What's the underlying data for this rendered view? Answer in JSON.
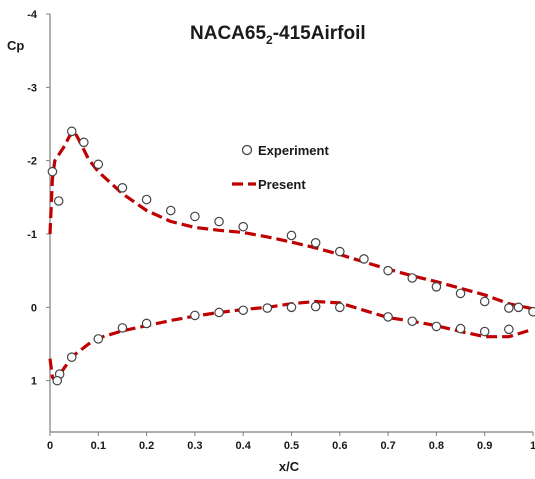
{
  "chart_data": {
    "type": "line",
    "title_main": "NACA65",
    "title_sub": "2",
    "title_rest": "-415Airfoil",
    "xlabel": "x/C",
    "ylabel": "Cp",
    "xlim": [
      0,
      1
    ],
    "ylim": [
      1.7,
      -4
    ],
    "y_inverted": true,
    "grid": false,
    "legend_position": "upper-center",
    "x_tick_labels": [
      "0",
      "0.1",
      "0.2",
      "0.3",
      "0.4",
      "0.5",
      "0.6",
      "0.7",
      "0.8",
      "0.9",
      "1"
    ],
    "x_tick_values": [
      0,
      0.1,
      0.2,
      0.3,
      0.4,
      0.5,
      0.6,
      0.7,
      0.8,
      0.9,
      1.0
    ],
    "y_tick_labels": [
      "-4",
      "-3",
      "-2",
      "-1",
      "0",
      "1"
    ],
    "y_tick_values": [
      -4,
      -3,
      -2,
      -1,
      0,
      1
    ],
    "colors": {
      "present": "#c00000",
      "experiment": "#444444",
      "axis": "#7f7f7f"
    },
    "series": [
      {
        "name": "Experiment",
        "style": "open-circle",
        "x": [
          0.005,
          0.018,
          0.045,
          0.07,
          0.1,
          0.15,
          0.2,
          0.25,
          0.3,
          0.35,
          0.4,
          0.5,
          0.55,
          0.6,
          0.65,
          0.7,
          0.75,
          0.8,
          0.85,
          0.9,
          0.95,
          0.97,
          1.0,
          0.02,
          0.015,
          0.045,
          0.1,
          0.15,
          0.2,
          0.3,
          0.35,
          0.4,
          0.45,
          0.5,
          0.55,
          0.6,
          0.7,
          0.75,
          0.8,
          0.85,
          0.9,
          0.95
        ],
        "y": [
          -1.85,
          -1.45,
          -2.4,
          -2.25,
          -1.95,
          -1.63,
          -1.47,
          -1.32,
          -1.24,
          -1.17,
          -1.1,
          -0.98,
          -0.88,
          -0.76,
          -0.66,
          -0.5,
          -0.4,
          -0.28,
          -0.19,
          -0.08,
          0.01,
          0.0,
          0.06,
          0.91,
          1.0,
          0.68,
          0.43,
          0.28,
          0.22,
          0.11,
          0.07,
          0.04,
          0.01,
          0.0,
          -0.01,
          0.0,
          0.13,
          0.19,
          0.26,
          0.29,
          0.33,
          0.3
        ]
      },
      {
        "name": "Present",
        "style": "dashed-line",
        "upper": {
          "x": [
            0.0,
            0.005,
            0.01,
            0.02,
            0.03,
            0.04,
            0.05,
            0.06,
            0.08,
            0.1,
            0.15,
            0.2,
            0.25,
            0.3,
            0.35,
            0.4,
            0.45,
            0.5,
            0.55,
            0.6,
            0.65,
            0.7,
            0.75,
            0.8,
            0.85,
            0.9,
            0.95,
            1.0
          ],
          "y": [
            -1.0,
            -1.75,
            -2.0,
            -2.1,
            -2.2,
            -2.33,
            -2.4,
            -2.28,
            -2.02,
            -1.85,
            -1.55,
            -1.32,
            -1.17,
            -1.09,
            -1.05,
            -1.02,
            -0.96,
            -0.89,
            -0.81,
            -0.72,
            -0.62,
            -0.52,
            -0.43,
            -0.35,
            -0.26,
            -0.17,
            -0.05,
            0.02
          ]
        },
        "lower": {
          "x": [
            0.0,
            0.005,
            0.01,
            0.02,
            0.03,
            0.05,
            0.08,
            0.1,
            0.15,
            0.2,
            0.25,
            0.3,
            0.35,
            0.4,
            0.45,
            0.5,
            0.55,
            0.6,
            0.65,
            0.7,
            0.75,
            0.8,
            0.85,
            0.9,
            0.95,
            1.0
          ],
          "y": [
            0.7,
            0.95,
            1.0,
            0.92,
            0.82,
            0.65,
            0.5,
            0.42,
            0.32,
            0.25,
            0.18,
            0.12,
            0.07,
            0.03,
            0.0,
            -0.05,
            -0.08,
            -0.06,
            0.04,
            0.14,
            0.19,
            0.25,
            0.33,
            0.4,
            0.4,
            0.3
          ]
        }
      }
    ]
  }
}
